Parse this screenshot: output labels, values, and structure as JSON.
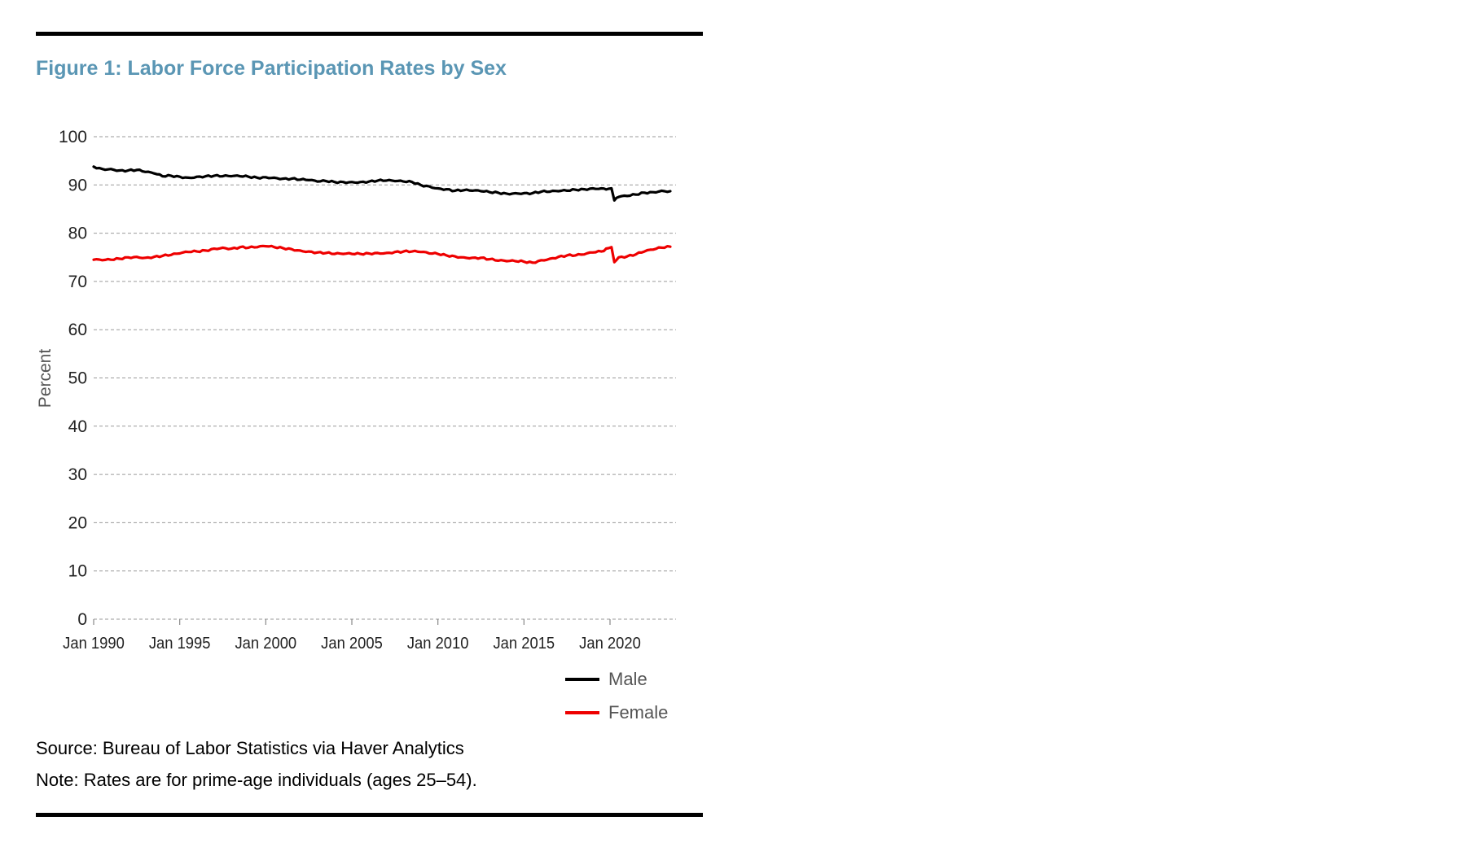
{
  "figure": {
    "title": "Figure 1: Labor Force Participation Rates by Sex",
    "source": "Source: Bureau of Labor Statistics via Haver Analytics",
    "note": "Note: Rates are for prime-age individuals (ages 25–54)."
  },
  "chart_data": {
    "type": "line",
    "ylabel": "Percent",
    "xlabel": "",
    "ylim": [
      0,
      100
    ],
    "yticks": [
      0,
      10,
      20,
      30,
      40,
      50,
      60,
      70,
      80,
      90,
      100
    ],
    "xlim": [
      "1990-01",
      "2024-01"
    ],
    "xticks": [
      {
        "date": "1990-01",
        "label": "Jan 1990"
      },
      {
        "date": "1995-01",
        "label": "Jan 1995"
      },
      {
        "date": "2000-01",
        "label": "Jan 2000"
      },
      {
        "date": "2005-01",
        "label": "Jan 2005"
      },
      {
        "date": "2010-01",
        "label": "Jan 2010"
      },
      {
        "date": "2015-01",
        "label": "Jan 2015"
      },
      {
        "date": "2020-01",
        "label": "Jan 2020"
      }
    ],
    "grid": "horizontal dashed",
    "legend_position": "bottom-right",
    "series": [
      {
        "name": "Male",
        "color": "#000000",
        "points": [
          [
            "1990-01",
            93.8
          ],
          [
            "1990-07",
            93.3
          ],
          [
            "1991-01",
            93.3
          ],
          [
            "1991-07",
            93.0
          ],
          [
            "1992-01",
            93.0
          ],
          [
            "1992-07",
            93.1
          ],
          [
            "1993-01",
            92.7
          ],
          [
            "1993-07",
            92.4
          ],
          [
            "1994-01",
            91.8
          ],
          [
            "1994-07",
            91.9
          ],
          [
            "1995-01",
            91.7
          ],
          [
            "1995-07",
            91.5
          ],
          [
            "1996-01",
            91.7
          ],
          [
            "1996-07",
            91.8
          ],
          [
            "1997-01",
            91.9
          ],
          [
            "1997-07",
            91.8
          ],
          [
            "1998-01",
            91.8
          ],
          [
            "1998-07",
            91.8
          ],
          [
            "1999-01",
            91.7
          ],
          [
            "1999-07",
            91.5
          ],
          [
            "2000-01",
            91.6
          ],
          [
            "2000-07",
            91.5
          ],
          [
            "2001-01",
            91.3
          ],
          [
            "2001-07",
            91.3
          ],
          [
            "2002-01",
            91.1
          ],
          [
            "2002-07",
            91.0
          ],
          [
            "2003-01",
            90.7
          ],
          [
            "2003-07",
            90.8
          ],
          [
            "2004-01",
            90.6
          ],
          [
            "2004-07",
            90.6
          ],
          [
            "2005-01",
            90.6
          ],
          [
            "2005-07",
            90.6
          ],
          [
            "2006-01",
            90.7
          ],
          [
            "2006-07",
            90.9
          ],
          [
            "2007-01",
            90.9
          ],
          [
            "2007-07",
            90.8
          ],
          [
            "2008-01",
            90.7
          ],
          [
            "2008-07",
            90.6
          ],
          [
            "2009-01",
            90.0
          ],
          [
            "2009-07",
            89.7
          ],
          [
            "2010-01",
            89.3
          ],
          [
            "2010-07",
            89.1
          ],
          [
            "2011-01",
            88.8
          ],
          [
            "2011-07",
            88.9
          ],
          [
            "2012-01",
            88.8
          ],
          [
            "2012-07",
            88.7
          ],
          [
            "2013-01",
            88.5
          ],
          [
            "2013-07",
            88.4
          ],
          [
            "2014-01",
            88.2
          ],
          [
            "2014-07",
            88.3
          ],
          [
            "2015-01",
            88.3
          ],
          [
            "2015-07",
            88.3
          ],
          [
            "2016-01",
            88.6
          ],
          [
            "2016-07",
            88.6
          ],
          [
            "2017-01",
            88.7
          ],
          [
            "2017-07",
            88.8
          ],
          [
            "2018-01",
            89.0
          ],
          [
            "2018-07",
            89.1
          ],
          [
            "2019-01",
            89.3
          ],
          [
            "2019-07",
            89.3
          ],
          [
            "2019-12",
            89.2
          ],
          [
            "2020-02",
            89.3
          ],
          [
            "2020-04",
            86.8
          ],
          [
            "2020-07",
            87.5
          ],
          [
            "2021-01",
            87.7
          ],
          [
            "2021-07",
            88.0
          ],
          [
            "2022-01",
            88.4
          ],
          [
            "2022-07",
            88.5
          ],
          [
            "2023-01",
            88.8
          ],
          [
            "2023-07",
            88.7
          ]
        ]
      },
      {
        "name": "Female",
        "color": "#ee0000",
        "points": [
          [
            "1990-01",
            74.5
          ],
          [
            "1990-07",
            74.4
          ],
          [
            "1991-01",
            74.5
          ],
          [
            "1991-07",
            74.7
          ],
          [
            "1992-01",
            75.0
          ],
          [
            "1992-07",
            75.1
          ],
          [
            "1993-01",
            74.9
          ],
          [
            "1993-07",
            75.1
          ],
          [
            "1994-01",
            75.3
          ],
          [
            "1994-07",
            75.5
          ],
          [
            "1995-01",
            75.8
          ],
          [
            "1995-07",
            76.1
          ],
          [
            "1996-01",
            76.2
          ],
          [
            "1996-07",
            76.4
          ],
          [
            "1997-01",
            76.8
          ],
          [
            "1997-07",
            77.0
          ],
          [
            "1998-01",
            76.8
          ],
          [
            "1998-07",
            77.1
          ],
          [
            "1999-01",
            77.0
          ],
          [
            "1999-07",
            77.1
          ],
          [
            "2000-01",
            77.3
          ],
          [
            "2000-07",
            77.1
          ],
          [
            "2001-01",
            76.9
          ],
          [
            "2001-07",
            76.7
          ],
          [
            "2002-01",
            76.4
          ],
          [
            "2002-07",
            76.2
          ],
          [
            "2003-01",
            76.0
          ],
          [
            "2003-07",
            75.9
          ],
          [
            "2004-01",
            75.7
          ],
          [
            "2004-07",
            75.7
          ],
          [
            "2005-01",
            75.7
          ],
          [
            "2005-07",
            75.7
          ],
          [
            "2006-01",
            75.8
          ],
          [
            "2006-07",
            75.9
          ],
          [
            "2007-01",
            75.9
          ],
          [
            "2007-07",
            76.1
          ],
          [
            "2008-01",
            76.2
          ],
          [
            "2008-07",
            76.2
          ],
          [
            "2009-01",
            76.1
          ],
          [
            "2009-07",
            75.8
          ],
          [
            "2010-01",
            75.7
          ],
          [
            "2010-07",
            75.4
          ],
          [
            "2011-01",
            75.2
          ],
          [
            "2011-07",
            75.0
          ],
          [
            "2012-01",
            74.9
          ],
          [
            "2012-07",
            74.9
          ],
          [
            "2013-01",
            74.6
          ],
          [
            "2013-07",
            74.3
          ],
          [
            "2014-01",
            74.2
          ],
          [
            "2014-07",
            74.2
          ],
          [
            "2015-01",
            74.1
          ],
          [
            "2015-07",
            73.9
          ],
          [
            "2016-01",
            74.4
          ],
          [
            "2016-07",
            74.7
          ],
          [
            "2017-01",
            75.1
          ],
          [
            "2017-07",
            75.4
          ],
          [
            "2018-01",
            75.4
          ],
          [
            "2018-07",
            75.6
          ],
          [
            "2019-01",
            76.0
          ],
          [
            "2019-07",
            76.2
          ],
          [
            "2019-12",
            76.9
          ],
          [
            "2020-02",
            77.1
          ],
          [
            "2020-04",
            74.0
          ],
          [
            "2020-07",
            75.0
          ],
          [
            "2021-01",
            75.2
          ],
          [
            "2021-07",
            75.6
          ],
          [
            "2022-01",
            76.2
          ],
          [
            "2022-07",
            76.6
          ],
          [
            "2023-01",
            77.0
          ],
          [
            "2023-07",
            77.2
          ]
        ]
      }
    ]
  }
}
